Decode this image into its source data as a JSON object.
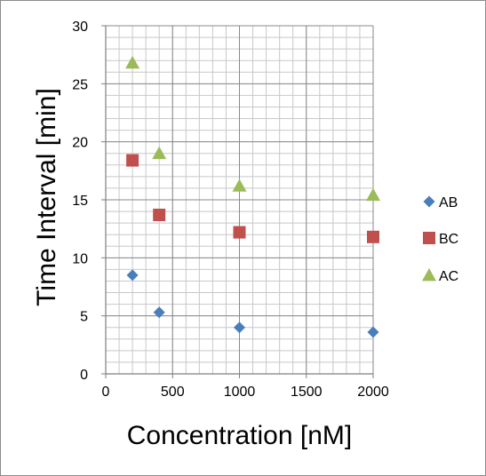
{
  "chart_data": {
    "type": "scatter",
    "title": "",
    "xlabel": "Concentration [nM]",
    "ylabel": "Time Interval [min]",
    "xlim": [
      0,
      2000
    ],
    "ylim": [
      0,
      30
    ],
    "x_major_ticks": [
      0,
      500,
      1000,
      1500,
      2000
    ],
    "x_minor_step": 100,
    "y_major_ticks": [
      0,
      5,
      10,
      15,
      20,
      25,
      30
    ],
    "y_minor_step": 1,
    "grid": true,
    "legend_position": "right",
    "series": [
      {
        "name": "AB",
        "marker": "diamond",
        "color": "#4a7ebb",
        "x": [
          200,
          400,
          1000,
          2000
        ],
        "y": [
          8.5,
          5.3,
          4.0,
          3.6
        ]
      },
      {
        "name": "BC",
        "marker": "square",
        "color": "#c0504d",
        "x": [
          200,
          400,
          1000,
          2000
        ],
        "y": [
          18.4,
          13.7,
          12.2,
          11.8
        ]
      },
      {
        "name": "AC",
        "marker": "triangle",
        "color": "#9bbb59",
        "x": [
          200,
          400,
          1000,
          2000
        ],
        "y": [
          26.8,
          19.0,
          16.2,
          15.4
        ]
      }
    ]
  }
}
